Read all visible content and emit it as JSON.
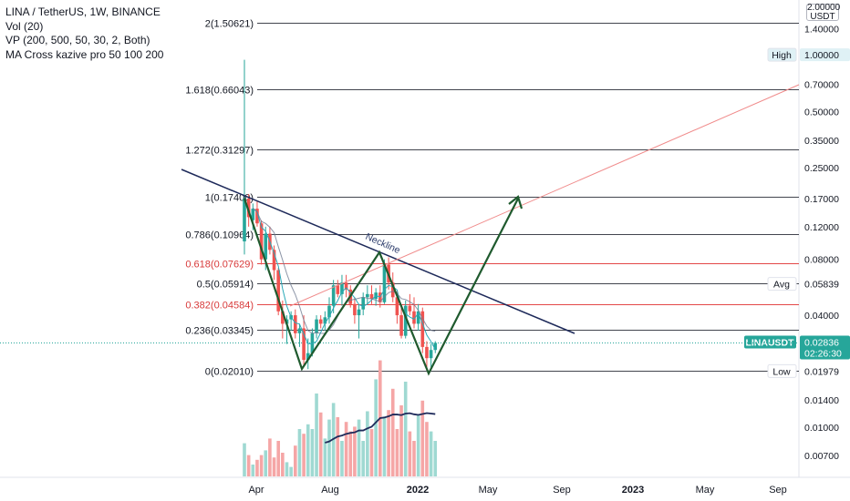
{
  "legend": {
    "title": "LINA / TetherUS, 1W, BINANCE",
    "indicators": [
      "Vol (20)",
      "VP (200, 500, 50, 30, 2, Both)",
      "MA Cross kazive pro 50 100 200"
    ]
  },
  "price_axis": {
    "unit_top": "2.00000",
    "unit": "USDT",
    "ticks": [
      "1.40000",
      "1.00000",
      "0.70000",
      "0.50000",
      "0.35000",
      "0.25000",
      "0.17000",
      "0.12000",
      "0.08000",
      "0.05839",
      "0.04000",
      "0.02836",
      "0.01979",
      "0.01400",
      "0.01000",
      "0.00700"
    ],
    "badges": [
      {
        "label": "High",
        "value": "1.00000"
      },
      {
        "label": "Avg",
        "value": "0.05839"
      },
      {
        "label": "LINAUSDT",
        "value": "0.02836",
        "sub": "02:26:30"
      },
      {
        "label": "Low",
        "value": "0.01979"
      }
    ]
  },
  "time_axis": {
    "ticks": [
      "Apr",
      "Aug",
      "2022",
      "May",
      "Sep",
      "2023",
      "May",
      "Sep"
    ]
  },
  "chart_data": {
    "type": "candlestick",
    "symbol": "LINAUSDT",
    "interval": "1W",
    "exchange": "BINANCE",
    "y_scale": "log",
    "ylim": [
      0.0055,
      2.0
    ],
    "fibonacci_levels": [
      {
        "label": "2(1.50621)",
        "value": 1.50621
      },
      {
        "label": "1.618(0.66043)",
        "value": 0.66043
      },
      {
        "label": "1.272(0.31297)",
        "value": 0.31297
      },
      {
        "label": "1(0.17400)",
        "value": 0.174
      },
      {
        "label": "0.786(0.10964)",
        "value": 0.10964
      },
      {
        "label": "0.618(0.07629)",
        "value": 0.07629
      },
      {
        "label": "0.5(0.05914)",
        "value": 0.05914
      },
      {
        "label": "0.382(0.04584)",
        "value": 0.04584
      },
      {
        "label": "0.236(0.03345)",
        "value": 0.03345
      },
      {
        "label": "0(0.02010)",
        "value": 0.0201
      }
    ],
    "annotations": [
      {
        "text": "Neckline"
      }
    ],
    "candles": [
      {
        "o": 0.1,
        "h": 0.95,
        "l": 0.085,
        "c": 0.17
      },
      {
        "o": 0.17,
        "h": 0.18,
        "l": 0.12,
        "c": 0.135
      },
      {
        "o": 0.13,
        "h": 0.16,
        "l": 0.115,
        "c": 0.15
      },
      {
        "o": 0.15,
        "h": 0.165,
        "l": 0.12,
        "c": 0.125
      },
      {
        "o": 0.125,
        "h": 0.13,
        "l": 0.075,
        "c": 0.08
      },
      {
        "o": 0.08,
        "h": 0.12,
        "l": 0.07,
        "c": 0.11
      },
      {
        "o": 0.11,
        "h": 0.12,
        "l": 0.085,
        "c": 0.09
      },
      {
        "o": 0.09,
        "h": 0.095,
        "l": 0.062,
        "c": 0.07
      },
      {
        "o": 0.07,
        "h": 0.072,
        "l": 0.04,
        "c": 0.042
      },
      {
        "o": 0.042,
        "h": 0.048,
        "l": 0.03,
        "c": 0.036
      },
      {
        "o": 0.036,
        "h": 0.04,
        "l": 0.028,
        "c": 0.038
      },
      {
        "o": 0.038,
        "h": 0.042,
        "l": 0.033,
        "c": 0.04
      },
      {
        "o": 0.04,
        "h": 0.043,
        "l": 0.03,
        "c": 0.032
      },
      {
        "o": 0.032,
        "h": 0.036,
        "l": 0.027,
        "c": 0.034
      },
      {
        "o": 0.034,
        "h": 0.04,
        "l": 0.021,
        "c": 0.023
      },
      {
        "o": 0.023,
        "h": 0.03,
        "l": 0.0205,
        "c": 0.025
      },
      {
        "o": 0.025,
        "h": 0.034,
        "l": 0.024,
        "c": 0.032
      },
      {
        "o": 0.032,
        "h": 0.04,
        "l": 0.03,
        "c": 0.038
      },
      {
        "o": 0.038,
        "h": 0.04,
        "l": 0.034,
        "c": 0.036
      },
      {
        "o": 0.036,
        "h": 0.042,
        "l": 0.033,
        "c": 0.039
      },
      {
        "o": 0.039,
        "h": 0.05,
        "l": 0.036,
        "c": 0.045
      },
      {
        "o": 0.045,
        "h": 0.062,
        "l": 0.041,
        "c": 0.058
      },
      {
        "o": 0.058,
        "h": 0.062,
        "l": 0.05,
        "c": 0.052
      },
      {
        "o": 0.052,
        "h": 0.066,
        "l": 0.045,
        "c": 0.06
      },
      {
        "o": 0.06,
        "h": 0.066,
        "l": 0.05,
        "c": 0.055
      },
      {
        "o": 0.055,
        "h": 0.058,
        "l": 0.044,
        "c": 0.046
      },
      {
        "o": 0.046,
        "h": 0.05,
        "l": 0.036,
        "c": 0.04
      },
      {
        "o": 0.04,
        "h": 0.046,
        "l": 0.03,
        "c": 0.043
      },
      {
        "o": 0.043,
        "h": 0.053,
        "l": 0.04,
        "c": 0.05
      },
      {
        "o": 0.05,
        "h": 0.058,
        "l": 0.046,
        "c": 0.052
      },
      {
        "o": 0.052,
        "h": 0.058,
        "l": 0.046,
        "c": 0.049
      },
      {
        "o": 0.049,
        "h": 0.056,
        "l": 0.045,
        "c": 0.053
      },
      {
        "o": 0.053,
        "h": 0.058,
        "l": 0.044,
        "c": 0.047
      },
      {
        "o": 0.047,
        "h": 0.08,
        "l": 0.046,
        "c": 0.075
      },
      {
        "o": 0.075,
        "h": 0.082,
        "l": 0.055,
        "c": 0.06
      },
      {
        "o": 0.06,
        "h": 0.068,
        "l": 0.047,
        "c": 0.05
      },
      {
        "o": 0.05,
        "h": 0.054,
        "l": 0.036,
        "c": 0.04
      },
      {
        "o": 0.04,
        "h": 0.045,
        "l": 0.03,
        "c": 0.031
      },
      {
        "o": 0.031,
        "h": 0.048,
        "l": 0.03,
        "c": 0.045
      },
      {
        "o": 0.045,
        "h": 0.052,
        "l": 0.04,
        "c": 0.042
      },
      {
        "o": 0.042,
        "h": 0.05,
        "l": 0.034,
        "c": 0.036
      },
      {
        "o": 0.036,
        "h": 0.046,
        "l": 0.033,
        "c": 0.042
      },
      {
        "o": 0.042,
        "h": 0.044,
        "l": 0.025,
        "c": 0.027
      },
      {
        "o": 0.027,
        "h": 0.029,
        "l": 0.0201,
        "c": 0.0235
      },
      {
        "o": 0.0235,
        "h": 0.028,
        "l": 0.021,
        "c": 0.026
      },
      {
        "o": 0.026,
        "h": 0.029,
        "l": 0.025,
        "c": 0.0284
      }
    ],
    "volume": [
      0.28,
      0.18,
      0.1,
      0.14,
      0.18,
      0.22,
      0.32,
      0.16,
      0.3,
      0.2,
      0.12,
      0.08,
      0.26,
      0.4,
      0.36,
      0.44,
      0.4,
      0.7,
      0.54,
      0.32,
      0.48,
      0.62,
      0.5,
      0.3,
      0.46,
      0.38,
      0.42,
      0.48,
      0.3,
      0.55,
      0.4,
      0.82,
      0.98,
      0.5,
      0.56,
      0.74,
      0.4,
      0.6,
      0.8,
      0.38,
      0.3,
      0.52,
      0.64,
      0.46,
      0.38,
      0.3
    ]
  }
}
